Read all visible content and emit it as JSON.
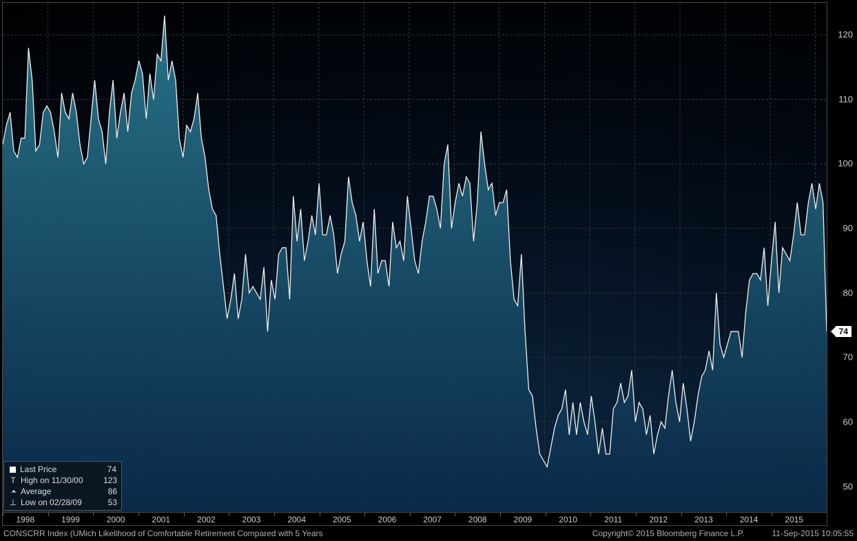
{
  "chart": {
    "type": "area",
    "background_gradient_top": "#000000",
    "background_gradient_bottom": "#0a2a4a",
    "grid_color": "#3a3a3a",
    "axis_text_color": "#cccccc",
    "line_color": "#f0f0f0",
    "fill_color_top": "#2a7a90",
    "fill_color_bottom": "#0a2a4a",
    "line_width": 1.3,
    "ylim": [
      46,
      125
    ],
    "yticks": [
      50,
      60,
      70,
      80,
      90,
      100,
      110,
      120
    ],
    "x_start_year": 1997.5,
    "x_end_year": 2015.75,
    "xticks": [
      1998,
      1999,
      2000,
      2001,
      2002,
      2003,
      2004,
      2005,
      2006,
      2007,
      2008,
      2009,
      2010,
      2011,
      2012,
      2013,
      2014,
      2015
    ],
    "last_value_marker": 74,
    "series": [
      103,
      106,
      108,
      102,
      101,
      104,
      104,
      118,
      113,
      102,
      103,
      108,
      109,
      108,
      105,
      101,
      111,
      108,
      107,
      111,
      108,
      103,
      100,
      101,
      107,
      113,
      107,
      105,
      100,
      108,
      113,
      104,
      108,
      111,
      105,
      111,
      113,
      116,
      114,
      107,
      114,
      110,
      117,
      116,
      123,
      113,
      116,
      113,
      104,
      101,
      106,
      105,
      107,
      111,
      104,
      101,
      96,
      93,
      92,
      86,
      81,
      76,
      79,
      83,
      76,
      79,
      86,
      80,
      81,
      80,
      79,
      84,
      74,
      82,
      79,
      86,
      87,
      87,
      79,
      95,
      88,
      93,
      85,
      88,
      92,
      89,
      97,
      89,
      89,
      92,
      89,
      83,
      86,
      88,
      98,
      94,
      92,
      88,
      91,
      85,
      81,
      93,
      83,
      85,
      85,
      81,
      91,
      87,
      88,
      85,
      95,
      90,
      85,
      83,
      88,
      91,
      95,
      95,
      93,
      90,
      100,
      103,
      90,
      94,
      97,
      95,
      98,
      97,
      88,
      94,
      105,
      100,
      96,
      97,
      92,
      94,
      94,
      96,
      85,
      79,
      78,
      86,
      74,
      65,
      64,
      59,
      55,
      54,
      53,
      56,
      59,
      61,
      62,
      65,
      58,
      63,
      58,
      63,
      60,
      58,
      64,
      60,
      55,
      59,
      55,
      55,
      62,
      63,
      66,
      63,
      64,
      68,
      60,
      63,
      62,
      58,
      61,
      55,
      58,
      60,
      59,
      64,
      68,
      63,
      60,
      66,
      62,
      57,
      60,
      64,
      67,
      68,
      71,
      68,
      80,
      72,
      70,
      72,
      74,
      74,
      74,
      70,
      77,
      82,
      83,
      83,
      82,
      87,
      78,
      85,
      91,
      80,
      87,
      86,
      85,
      89,
      94,
      89,
      89,
      94,
      97,
      93,
      97,
      94,
      74
    ]
  },
  "legend": {
    "rows": [
      {
        "icon": "square",
        "label": "Last Price",
        "value": "74"
      },
      {
        "icon": "high",
        "label": "High on 11/30/00",
        "value": "123"
      },
      {
        "icon": "avg",
        "label": "Average",
        "value": "86"
      },
      {
        "icon": "low",
        "label": "Low on 02/28/09",
        "value": "53"
      }
    ]
  },
  "footer": {
    "left": "CONSCRR Index (UMich Likelihood of Comfortable Retirement Compared with 5 Years",
    "copyright": "Copyright© 2015 Bloomberg Finance L.P.",
    "timestamp": "11-Sep-2015 10:05:55"
  }
}
